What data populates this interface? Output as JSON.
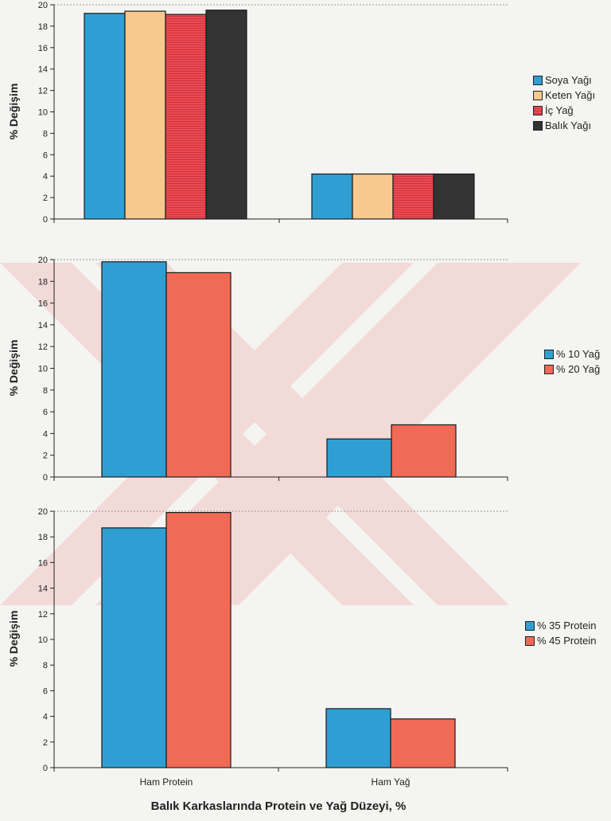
{
  "chart_data": [
    {
      "type": "bar",
      "categories": [
        "Ham Protein",
        "Ham Yağ"
      ],
      "series": [
        {
          "name": "Soya Yağı",
          "values": [
            19.2,
            4.2
          ]
        },
        {
          "name": "Keten Yağı",
          "values": [
            19.4,
            4.2
          ]
        },
        {
          "name": "İç Yağ",
          "values": [
            19.1,
            4.2
          ]
        },
        {
          "name": "Balık Yağı",
          "values": [
            19.5,
            4.2
          ]
        }
      ],
      "colors": [
        "#2f9fd3",
        "#f7c98e",
        "#ee4a52",
        "#333333"
      ],
      "ylabel": "% Değişim",
      "ylim": [
        0,
        20
      ],
      "yticks": [
        "0",
        "2",
        "4",
        "6",
        "8",
        "10",
        "12",
        "14",
        "16",
        "18",
        "20"
      ],
      "show_category_labels": false,
      "legend": "right"
    },
    {
      "type": "bar",
      "categories": [
        "Ham Protein",
        "Ham Yağ"
      ],
      "series": [
        {
          "name": "% 10 Yağ",
          "values": [
            19.8,
            3.5
          ]
        },
        {
          "name": "% 20 Yağ",
          "values": [
            18.8,
            4.8
          ]
        }
      ],
      "colors": [
        "#2f9fd3",
        "#f06a55"
      ],
      "ylabel": "% Değişim",
      "ylim": [
        0,
        20
      ],
      "yticks": [
        "0",
        "2",
        "4",
        "6",
        "8",
        "10",
        "12",
        "14",
        "16",
        "18",
        "20"
      ],
      "show_category_labels": false,
      "legend": "right"
    },
    {
      "type": "bar",
      "categories": [
        "Ham Protein",
        "Ham Yağ"
      ],
      "series": [
        {
          "name": "% 35 Protein",
          "values": [
            18.7,
            4.6
          ]
        },
        {
          "name": "% 45 Protein",
          "values": [
            19.9,
            3.8
          ]
        }
      ],
      "colors": [
        "#2f9fd3",
        "#f06a55"
      ],
      "ylabel": "% Değişim",
      "ylim": [
        0,
        20
      ],
      "yticks": [
        "0",
        "2",
        "4",
        "6",
        "8",
        "10",
        "12",
        "14",
        "16",
        "18",
        "20"
      ],
      "show_category_labels": true,
      "legend": "right"
    }
  ],
  "xlabel": "Balık Karkaslarında Protein ve Yağ Düzeyi, %"
}
